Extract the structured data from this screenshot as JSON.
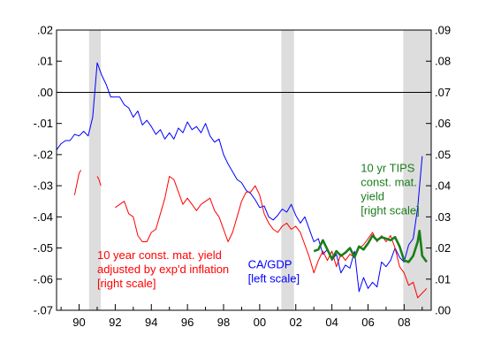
{
  "chart_data": {
    "type": "line",
    "xlim": [
      1988.75,
      2009.5
    ],
    "x_ticks": [
      {
        "x": 1990,
        "label": "90"
      },
      {
        "x": 1992,
        "label": "92"
      },
      {
        "x": 1994,
        "label": "94"
      },
      {
        "x": 1996,
        "label": "96"
      },
      {
        "x": 1998,
        "label": "98"
      },
      {
        "x": 2000,
        "label": "00"
      },
      {
        "x": 2002,
        "label": "02"
      },
      {
        "x": 2004,
        "label": "04"
      },
      {
        "x": 2006,
        "label": "06"
      },
      {
        "x": 2008,
        "label": "08"
      }
    ],
    "left_axis": {
      "ylim": [
        -0.07,
        0.02
      ],
      "ticks": [
        {
          "v": 0.02,
          "label": ".02"
        },
        {
          "v": 0.01,
          "label": ".01"
        },
        {
          "v": 0.0,
          "label": ".00"
        },
        {
          "v": -0.01,
          "label": "-.01"
        },
        {
          "v": -0.02,
          "label": "-.02"
        },
        {
          "v": -0.03,
          "label": "-.03"
        },
        {
          "v": -0.04,
          "label": "-.04"
        },
        {
          "v": -0.05,
          "label": "-.05"
        },
        {
          "v": -0.06,
          "label": "-.06"
        },
        {
          "v": -0.07,
          "label": "-.07"
        }
      ]
    },
    "right_axis": {
      "ylim": [
        0.0,
        0.09
      ],
      "ticks": [
        {
          "v": 0.09,
          "label": ".09"
        },
        {
          "v": 0.08,
          "label": ".08"
        },
        {
          "v": 0.07,
          "label": ".07"
        },
        {
          "v": 0.06,
          "label": ".06"
        },
        {
          "v": 0.05,
          "label": ".05"
        },
        {
          "v": 0.04,
          "label": ".04"
        },
        {
          "v": 0.03,
          "label": ".03"
        },
        {
          "v": 0.02,
          "label": ".02"
        },
        {
          "v": 0.01,
          "label": ".01"
        },
        {
          "v": 0.0,
          "label": ".00"
        }
      ]
    },
    "zero_line": 0.0,
    "recession_shading": [
      [
        1990.55,
        1991.2
      ],
      [
        2001.2,
        2001.9
      ],
      [
        2007.95,
        2009.5
      ]
    ],
    "series": [
      {
        "axis": "left",
        "color": "#0000ff",
        "points": [
          [
            1988.75,
            -0.0185
          ],
          [
            1989.0,
            -0.0165
          ],
          [
            1989.25,
            -0.0155
          ],
          [
            1989.5,
            -0.0155
          ],
          [
            1989.75,
            -0.0135
          ],
          [
            1990.0,
            -0.014
          ],
          [
            1990.25,
            -0.0125
          ],
          [
            1990.5,
            -0.014
          ],
          [
            1990.75,
            -0.008
          ],
          [
            1991.0,
            0.0095
          ],
          [
            1991.25,
            0.0055
          ],
          [
            1991.5,
            0.0025
          ],
          [
            1991.75,
            -0.0015
          ],
          [
            1992.0,
            -0.0015
          ],
          [
            1992.25,
            -0.0015
          ],
          [
            1992.5,
            -0.004
          ],
          [
            1992.75,
            -0.005
          ],
          [
            1993.0,
            -0.008
          ],
          [
            1993.25,
            -0.006
          ],
          [
            1993.5,
            -0.0105
          ],
          [
            1993.75,
            -0.009
          ],
          [
            1994.0,
            -0.011
          ],
          [
            1994.25,
            -0.0135
          ],
          [
            1994.5,
            -0.012
          ],
          [
            1994.75,
            -0.015
          ],
          [
            1995.0,
            -0.013
          ],
          [
            1995.25,
            -0.015
          ],
          [
            1995.5,
            -0.0115
          ],
          [
            1995.75,
            -0.013
          ],
          [
            1996.0,
            -0.0095
          ],
          [
            1996.25,
            -0.012
          ],
          [
            1996.5,
            -0.011
          ],
          [
            1996.75,
            -0.013
          ],
          [
            1997.0,
            -0.01
          ],
          [
            1997.25,
            -0.014
          ],
          [
            1997.5,
            -0.016
          ],
          [
            1997.75,
            -0.015
          ],
          [
            1998.0,
            -0.02
          ],
          [
            1998.25,
            -0.023
          ],
          [
            1998.5,
            -0.0255
          ],
          [
            1998.75,
            -0.028
          ],
          [
            1999.0,
            -0.029
          ],
          [
            1999.25,
            -0.0315
          ],
          [
            1999.5,
            -0.0325
          ],
          [
            1999.75,
            -0.0345
          ],
          [
            2000.0,
            -0.037
          ],
          [
            2000.25,
            -0.0365
          ],
          [
            2000.5,
            -0.04
          ],
          [
            2000.75,
            -0.041
          ],
          [
            2001.0,
            -0.0395
          ],
          [
            2001.25,
            -0.0375
          ],
          [
            2001.5,
            -0.0385
          ],
          [
            2001.75,
            -0.036
          ],
          [
            2002.0,
            -0.0395
          ],
          [
            2002.25,
            -0.042
          ],
          [
            2002.5,
            -0.04
          ],
          [
            2002.75,
            -0.044
          ],
          [
            2003.0,
            -0.048
          ],
          [
            2003.25,
            -0.047
          ],
          [
            2003.5,
            -0.052
          ],
          [
            2003.75,
            -0.0505
          ],
          [
            2004.0,
            -0.054
          ],
          [
            2004.25,
            -0.052
          ],
          [
            2004.5,
            -0.058
          ],
          [
            2004.75,
            -0.0555
          ],
          [
            2005.0,
            -0.0565
          ],
          [
            2005.25,
            -0.051
          ],
          [
            2005.5,
            -0.064
          ],
          [
            2005.75,
            -0.0595
          ],
          [
            2006.0,
            -0.063
          ],
          [
            2006.25,
            -0.061
          ],
          [
            2006.5,
            -0.0625
          ],
          [
            2006.75,
            -0.0545
          ],
          [
            2007.0,
            -0.056
          ],
          [
            2007.25,
            -0.054
          ],
          [
            2007.5,
            -0.05
          ],
          [
            2007.75,
            -0.053
          ],
          [
            2008.0,
            -0.0545
          ],
          [
            2008.25,
            -0.049
          ],
          [
            2008.5,
            -0.047
          ],
          [
            2008.75,
            -0.037
          ],
          [
            2009.0,
            -0.0205
          ]
        ]
      },
      {
        "axis": "right",
        "color": "#ff0000",
        "points": [
          [
            1989.75,
            0.037
          ],
          [
            1990.0,
            0.044
          ],
          [
            1990.1,
            0.045
          ],
          [
            null,
            null
          ],
          [
            1991.0,
            0.043
          ],
          [
            1991.1,
            0.042
          ],
          [
            1991.2,
            0.04
          ],
          [
            null,
            null
          ],
          [
            1992.0,
            0.033
          ],
          [
            1992.25,
            0.034
          ],
          [
            1992.5,
            0.035
          ],
          [
            1992.75,
            0.031
          ],
          [
            1993.0,
            0.03
          ],
          [
            1993.25,
            0.024
          ],
          [
            1993.5,
            0.022
          ],
          [
            1993.75,
            0.022
          ],
          [
            1994.0,
            0.025
          ],
          [
            1994.25,
            0.026
          ],
          [
            1994.5,
            0.031
          ],
          [
            1994.75,
            0.036
          ],
          [
            1995.0,
            0.043
          ],
          [
            1995.25,
            0.042
          ],
          [
            1995.5,
            0.038
          ],
          [
            1995.75,
            0.034
          ],
          [
            1996.0,
            0.036
          ],
          [
            1996.25,
            0.034
          ],
          [
            1996.5,
            0.032
          ],
          [
            1996.75,
            0.034
          ],
          [
            1997.0,
            0.035
          ],
          [
            1997.25,
            0.036
          ],
          [
            1997.5,
            0.032
          ],
          [
            1997.75,
            0.03
          ],
          [
            1998.0,
            0.026
          ],
          [
            1998.25,
            0.022
          ],
          [
            1998.5,
            0.025
          ],
          [
            1998.75,
            0.03
          ],
          [
            1999.0,
            0.035
          ],
          [
            1999.25,
            0.038
          ],
          [
            1999.5,
            0.038
          ],
          [
            1999.75,
            0.04
          ],
          [
            2000.0,
            0.037
          ],
          [
            2000.25,
            0.031
          ],
          [
            2000.5,
            0.028
          ],
          [
            2000.75,
            0.026
          ],
          [
            2001.0,
            0.025
          ],
          [
            2001.25,
            0.027
          ],
          [
            2001.5,
            0.028
          ],
          [
            2001.75,
            0.026
          ],
          [
            2002.0,
            0.027
          ],
          [
            2002.25,
            0.025
          ],
          [
            2002.5,
            0.021
          ],
          [
            2002.75,
            0.017
          ],
          [
            2003.0,
            0.012
          ],
          [
            2003.25,
            0.016
          ],
          [
            2003.5,
            0.019
          ],
          [
            2003.75,
            0.016
          ],
          [
            2004.0,
            0.019
          ],
          [
            2004.25,
            0.014
          ],
          [
            2004.5,
            0.018
          ],
          [
            2004.75,
            0.016
          ],
          [
            2005.0,
            0.018
          ],
          [
            2005.25,
            0.017
          ],
          [
            2005.5,
            0.02
          ],
          [
            2005.75,
            0.021
          ],
          [
            2006.0,
            0.023
          ],
          [
            2006.25,
            0.025
          ],
          [
            2006.5,
            0.022
          ],
          [
            2006.75,
            0.024
          ],
          [
            2007.0,
            0.022
          ],
          [
            2007.25,
            0.024
          ],
          [
            2007.5,
            0.02
          ],
          [
            2007.75,
            0.014
          ],
          [
            2008.0,
            0.012
          ],
          [
            2008.25,
            0.008
          ],
          [
            2008.5,
            0.009
          ],
          [
            2008.75,
            0.004
          ],
          [
            2009.0,
            0.0055
          ],
          [
            2009.25,
            0.007
          ]
        ]
      },
      {
        "axis": "right",
        "color": "#1a7d1a",
        "points": [
          [
            2003.0,
            0.019
          ],
          [
            2003.25,
            0.0195
          ],
          [
            2003.5,
            0.0225
          ],
          [
            2003.75,
            0.0195
          ],
          [
            2004.0,
            0.0165
          ],
          [
            2004.25,
            0.019
          ],
          [
            2004.5,
            0.0175
          ],
          [
            2004.75,
            0.0185
          ],
          [
            2005.0,
            0.02
          ],
          [
            2005.25,
            0.017
          ],
          [
            2005.5,
            0.0205
          ],
          [
            2005.75,
            0.0195
          ],
          [
            2006.0,
            0.0215
          ],
          [
            2006.25,
            0.024
          ],
          [
            2006.5,
            0.0225
          ],
          [
            2006.75,
            0.0235
          ],
          [
            2007.0,
            0.023
          ],
          [
            2007.25,
            0.0225
          ],
          [
            2007.5,
            0.0235
          ],
          [
            2007.75,
            0.0205
          ],
          [
            2008.0,
            0.016
          ],
          [
            2008.25,
            0.0155
          ],
          [
            2008.5,
            0.0175
          ],
          [
            2008.75,
            0.022
          ],
          [
            2008.85,
            0.0255
          ],
          [
            2009.0,
            0.0175
          ],
          [
            2009.25,
            0.0155
          ]
        ]
      }
    ],
    "annotations": [
      {
        "lines": [
          "CA/GDP",
          "[left scale]"
        ],
        "color": "#0000ff",
        "anchor": [
          1999.35,
          0.0135
        ],
        "axis": "right"
      },
      {
        "lines": [
          "10 yr TIPS",
          "const. mat.",
          "yield",
          "[right scale]"
        ],
        "color": "#1a7d1a",
        "anchor": [
          2005.6,
          0.0445
        ],
        "axis": "right"
      },
      {
        "lines": [
          "10 year const. mat. yield",
          "adjusted by exp'd inflation",
          "[right scale]"
        ],
        "color": "#ff0000",
        "anchor": [
          1991.0,
          0.0164
        ],
        "axis": "right"
      }
    ]
  }
}
